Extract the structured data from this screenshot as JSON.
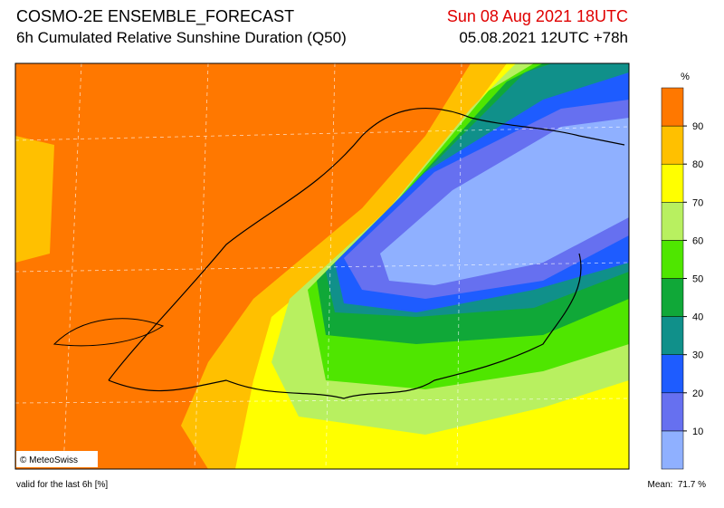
{
  "header": {
    "title": "COSMO-2E ENSEMBLE_FORECAST",
    "subtitle": "6h Cumulated Relative Sunshine Duration (Q50)",
    "valid_time": "Sun 08 Aug 2021 18UTC",
    "run": "05.08.2021 12UTC +78h"
  },
  "map": {
    "copyright": "© MeteoSwiss"
  },
  "legend": {
    "unit": "%",
    "ticks": [
      10,
      20,
      30,
      40,
      50,
      60,
      70,
      80,
      90
    ],
    "colors": [
      "#8fb0ff",
      "#6670f0",
      "#1e5cff",
      "#10908a",
      "#10a838",
      "#4fe600",
      "#b8f060",
      "#ffff00",
      "#ffc000",
      "#ff7800"
    ]
  },
  "footer": {
    "note": "valid for the last 6h [%]",
    "mean_label": "Mean:",
    "mean": 71.7,
    "mean_unit": "%"
  }
}
